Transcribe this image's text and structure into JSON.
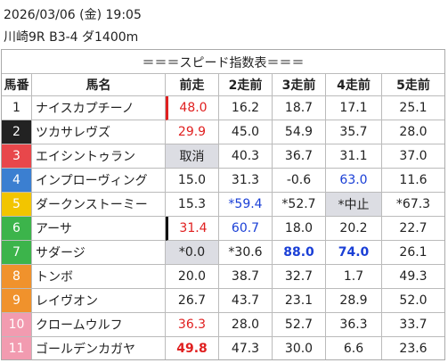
{
  "header": {
    "datetime": "2026/03/06 (金) 19:05",
    "race": "川崎9R B3-4 ダ1400m"
  },
  "table": {
    "title": "＝＝＝スピード指数表＝＝＝",
    "columns": [
      "馬番",
      "馬名",
      "前走",
      "2走前",
      "3走前",
      "4走前",
      "5走前"
    ],
    "rows": [
      [
        "1",
        "ナイスカプチーノ",
        "48.0",
        "16.2",
        "18.7",
        "17.1",
        "25.1"
      ],
      [
        "2",
        "ツカサレヴズ",
        "29.9",
        "45.0",
        "54.9",
        "35.7",
        "28.0"
      ],
      [
        "3",
        "エイシントゥラン",
        "取消",
        "40.3",
        "36.7",
        "31.1",
        "37.0"
      ],
      [
        "4",
        "インプローヴィング",
        "15.0",
        "31.3",
        "-0.6",
        "63.0",
        "11.6"
      ],
      [
        "5",
        "ダークンストーミー",
        "15.3",
        "*59.4",
        "*52.7",
        "*中止",
        "*67.3"
      ],
      [
        "6",
        "アーサ",
        "31.4",
        "60.7",
        "18.0",
        "20.2",
        "22.7"
      ],
      [
        "7",
        "サダージ",
        "*0.0",
        "*30.6",
        "88.0",
        "74.0",
        "26.1"
      ],
      [
        "8",
        "トンボ",
        "20.0",
        "38.7",
        "32.7",
        "1.7",
        "49.3"
      ],
      [
        "9",
        "レイヴオン",
        "26.7",
        "43.7",
        "23.1",
        "28.9",
        "52.0"
      ],
      [
        "10",
        "クロームウルフ",
        "36.3",
        "28.0",
        "52.7",
        "36.3",
        "33.7"
      ],
      [
        "11",
        "ゴールデンカガヤ",
        "49.8",
        "47.3",
        "30.0",
        "6.6",
        "23.6"
      ]
    ]
  }
}
